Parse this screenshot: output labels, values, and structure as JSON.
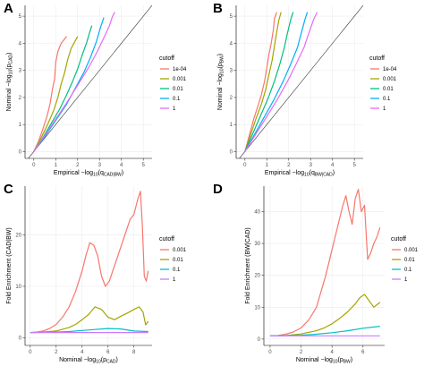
{
  "chart_data": [
    {
      "type": "line",
      "panel_label": "A",
      "xlabel": "Empirical −log10(qCAD|BW)",
      "xlabel_main": "Empirical −log",
      "xlabel_sub1": "10",
      "xlabel_mid": "(q",
      "xlabel_sub2": "CAD|BW",
      "xlabel_end": ")",
      "ylabel": "Nominal −log10(pCAD)",
      "ylabel_main": "Nominal −log",
      "ylabel_sub1": "10",
      "ylabel_mid": "(p",
      "ylabel_sub2": "CAD",
      "ylabel_end": ")",
      "xlim": [
        -0.4,
        5.4
      ],
      "ylim": [
        -0.25,
        5.4
      ],
      "xticks": [
        "0",
        "1",
        "2",
        "3",
        "4",
        "5"
      ],
      "yticks": [
        "0",
        "1",
        "2",
        "3",
        "4",
        "5"
      ],
      "reference_line": "y=x",
      "legend": {
        "title": "cutoff",
        "placement": "right"
      },
      "series": [
        {
          "name": "1e-04",
          "color": "#f8766d",
          "x": [
            0,
            0.2,
            0.4,
            0.6,
            0.75,
            0.85,
            0.95,
            1.0,
            1.1,
            1.25,
            1.4,
            1.5
          ],
          "y": [
            0,
            0.35,
            0.8,
            1.3,
            1.8,
            2.3,
            2.7,
            3.3,
            3.7,
            4.0,
            4.15,
            4.25
          ]
        },
        {
          "name": "0.001",
          "color": "#a3a500",
          "x": [
            0,
            0.3,
            0.6,
            0.9,
            1.1,
            1.25,
            1.4,
            1.55,
            1.7,
            1.9,
            2.0
          ],
          "y": [
            0,
            0.45,
            0.95,
            1.5,
            2.0,
            2.5,
            2.9,
            3.4,
            3.8,
            4.1,
            4.25
          ]
        },
        {
          "name": "0.01",
          "color": "#00bf7d",
          "x": [
            0,
            0.4,
            0.8,
            1.2,
            1.5,
            1.75,
            2.0,
            2.2,
            2.4,
            2.55,
            2.65
          ],
          "y": [
            0,
            0.5,
            1.05,
            1.6,
            2.1,
            2.55,
            3.05,
            3.55,
            4.0,
            4.4,
            4.65
          ]
        },
        {
          "name": "0.1",
          "color": "#00b0f6",
          "x": [
            0,
            0.5,
            1.0,
            1.5,
            1.9,
            2.3,
            2.6,
            2.85,
            3.05,
            3.2
          ],
          "y": [
            0,
            0.55,
            1.15,
            1.75,
            2.35,
            2.95,
            3.5,
            4.05,
            4.6,
            4.95
          ]
        },
        {
          "name": "1",
          "color": "#e76bf3",
          "x": [
            0,
            0.5,
            1.0,
            1.5,
            2.0,
            2.5,
            2.9,
            3.2,
            3.45,
            3.6,
            3.7
          ],
          "y": [
            0,
            0.6,
            1.2,
            1.8,
            2.45,
            3.1,
            3.7,
            4.2,
            4.65,
            5.0,
            5.15
          ]
        }
      ]
    },
    {
      "type": "line",
      "panel_label": "B",
      "xlabel": "Empirical −log10(qBW|CAD)",
      "xlabel_main": "Empirical −log",
      "xlabel_sub1": "10",
      "xlabel_mid": "(q",
      "xlabel_sub2": "BW|CAD",
      "xlabel_end": ")",
      "ylabel": "Nominal −log10(pBW)",
      "ylabel_main": "Nominal −log",
      "ylabel_sub1": "10",
      "ylabel_mid": "(p",
      "ylabel_sub2": "BW",
      "ylabel_end": ")",
      "xlim": [
        -0.4,
        5.4
      ],
      "ylim": [
        -0.25,
        5.4
      ],
      "xticks": [
        "0",
        "1",
        "2",
        "3",
        "4",
        "5"
      ],
      "yticks": [
        "0",
        "1",
        "2",
        "3",
        "4",
        "5"
      ],
      "reference_line": "y=x",
      "legend": {
        "title": "cutoff",
        "placement": "right"
      },
      "series": [
        {
          "name": "1e-04",
          "color": "#f8766d",
          "x": [
            0,
            0.2,
            0.4,
            0.6,
            0.75,
            0.9,
            1.0,
            1.1,
            1.2,
            1.3,
            1.35,
            1.45
          ],
          "y": [
            0,
            0.6,
            1.2,
            1.7,
            2.1,
            2.6,
            3.1,
            3.6,
            4.0,
            4.5,
            4.9,
            5.15
          ]
        },
        {
          "name": "0.001",
          "color": "#a3a500",
          "x": [
            0,
            0.25,
            0.5,
            0.75,
            0.95,
            1.1,
            1.25,
            1.35,
            1.45,
            1.55,
            1.65
          ],
          "y": [
            0,
            0.6,
            1.2,
            1.75,
            2.3,
            2.85,
            3.4,
            3.9,
            4.4,
            4.85,
            5.15
          ]
        },
        {
          "name": "0.01",
          "color": "#00bf7d",
          "x": [
            0,
            0.35,
            0.7,
            1.05,
            1.35,
            1.6,
            1.8,
            1.95,
            2.1,
            2.2
          ],
          "y": [
            0,
            0.65,
            1.3,
            1.95,
            2.6,
            3.25,
            3.85,
            4.4,
            4.9,
            5.15
          ]
        },
        {
          "name": "0.1",
          "color": "#00b0f6",
          "x": [
            0,
            0.45,
            0.9,
            1.35,
            1.75,
            2.1,
            2.4,
            2.6,
            2.75,
            2.85
          ],
          "y": [
            0,
            0.65,
            1.3,
            1.95,
            2.6,
            3.25,
            3.85,
            4.45,
            4.9,
            5.15
          ]
        },
        {
          "name": "1",
          "color": "#e76bf3",
          "x": [
            0,
            0.5,
            1.0,
            1.5,
            1.95,
            2.35,
            2.7,
            2.95,
            3.15,
            3.3
          ],
          "y": [
            0,
            0.65,
            1.3,
            1.95,
            2.6,
            3.25,
            3.85,
            4.45,
            4.9,
            5.15
          ]
        }
      ]
    },
    {
      "type": "line",
      "panel_label": "C",
      "xlabel": "Nominal −log10(pCAD)",
      "xlabel_main": "Nominal −log",
      "xlabel_sub1": "10",
      "xlabel_mid": "(p",
      "xlabel_sub2": "CAD",
      "xlabel_end": ")",
      "ylabel": "Fold Enrichment (CAD|BW)",
      "ylabel_main": "Fold Enrichment (CAD|BW)",
      "ylabel_sub1": "",
      "ylabel_mid": "",
      "ylabel_sub2": "",
      "ylabel_end": "",
      "xlim": [
        -0.4,
        9.4
      ],
      "ylim": [
        -1.5,
        29.5
      ],
      "xticks": [
        "0",
        "2",
        "4",
        "6",
        "8"
      ],
      "yticks": [
        "0",
        "10",
        "20"
      ],
      "reference_line": "none",
      "legend": {
        "title": "cutoff",
        "placement": "right"
      },
      "series": [
        {
          "name": "0.001",
          "color": "#f8766d",
          "x": [
            0,
            0.5,
            1,
            1.5,
            2,
            2.5,
            3,
            3.5,
            4,
            4.3,
            4.6,
            4.9,
            5.2,
            5.5,
            5.8,
            6.1,
            6.5,
            6.9,
            7.3,
            7.7,
            8.0,
            8.3,
            8.5,
            8.65,
            8.8,
            8.95,
            9.1
          ],
          "y": [
            1,
            1.1,
            1.3,
            1.8,
            2.6,
            4,
            6,
            9,
            13,
            16,
            18.5,
            18,
            16,
            12,
            10,
            11,
            14,
            17,
            20,
            23,
            24,
            27,
            28.5,
            22,
            12,
            11,
            13
          ]
        },
        {
          "name": "0.01",
          "color": "#a3a500",
          "x": [
            0,
            1,
            2,
            3,
            3.5,
            4,
            4.5,
            5,
            5.5,
            6,
            6.5,
            7,
            7.5,
            8,
            8.4,
            8.7,
            8.9,
            9.1
          ],
          "y": [
            1,
            1.1,
            1.3,
            2,
            2.6,
            3.5,
            4.5,
            6,
            5.5,
            4,
            3.5,
            4.2,
            4.8,
            5.5,
            6,
            5,
            2.5,
            3.2
          ]
        },
        {
          "name": "0.1",
          "color": "#00bfc4",
          "x": [
            0,
            1,
            2,
            3,
            4,
            5,
            6,
            7,
            8,
            9.1
          ],
          "y": [
            1,
            1.05,
            1.1,
            1.2,
            1.4,
            1.6,
            1.8,
            1.7,
            1.3,
            1.2
          ]
        },
        {
          "name": "1",
          "color": "#c77cff",
          "x": [
            0,
            9.1
          ],
          "y": [
            1,
            1
          ]
        }
      ]
    },
    {
      "type": "line",
      "panel_label": "D",
      "xlabel": "Nominal −log10(pBW)",
      "xlabel_main": "Nominal −log",
      "xlabel_sub1": "10",
      "xlabel_mid": "(p",
      "xlabel_sub2": "BW",
      "xlabel_end": ")",
      "ylabel": "Fold Enrichment (BW|CAD)",
      "ylabel_main": "Fold Enrichment (BW|CAD)",
      "ylabel_sub1": "",
      "ylabel_mid": "",
      "ylabel_sub2": "",
      "ylabel_end": "",
      "xlim": [
        -0.4,
        7.4
      ],
      "ylim": [
        -2,
        48
      ],
      "xticks": [
        "0",
        "2",
        "4",
        "6"
      ],
      "yticks": [
        "0",
        "10",
        "20",
        "30",
        "40"
      ],
      "reference_line": "none",
      "legend": {
        "title": "cutoff",
        "placement": "right"
      },
      "series": [
        {
          "name": "0.001",
          "color": "#f8766d",
          "x": [
            0,
            0.5,
            1,
            1.5,
            2,
            2.5,
            3,
            3.3,
            3.6,
            3.9,
            4.2,
            4.5,
            4.7,
            4.9,
            5.1,
            5.3,
            5.5,
            5.7,
            5.9,
            6.1,
            6.3,
            6.5,
            6.7,
            6.9,
            7.1
          ],
          "y": [
            1,
            1.1,
            1.5,
            2.2,
            3.5,
            6,
            10,
            15,
            20,
            26,
            32,
            38,
            42,
            45,
            40,
            36,
            44,
            47,
            40,
            42,
            25,
            27,
            30,
            32,
            35
          ]
        },
        {
          "name": "0.01",
          "color": "#a3a500",
          "x": [
            0,
            1,
            2,
            3,
            3.5,
            4,
            4.5,
            5,
            5.5,
            5.8,
            6.1,
            6.4,
            6.7,
            7.1
          ],
          "y": [
            1,
            1.1,
            1.6,
            2.6,
            3.5,
            4.8,
            6.5,
            8.5,
            11,
            13,
            14,
            12,
            10,
            11.5
          ]
        },
        {
          "name": "0.1",
          "color": "#00bfc4",
          "x": [
            0,
            1,
            2,
            3,
            4,
            5,
            6,
            7.1
          ],
          "y": [
            1,
            1.05,
            1.2,
            1.5,
            2,
            2.6,
            3.4,
            4
          ]
        },
        {
          "name": "1",
          "color": "#c77cff",
          "x": [
            0,
            7.1
          ],
          "y": [
            1,
            1
          ]
        }
      ]
    }
  ]
}
